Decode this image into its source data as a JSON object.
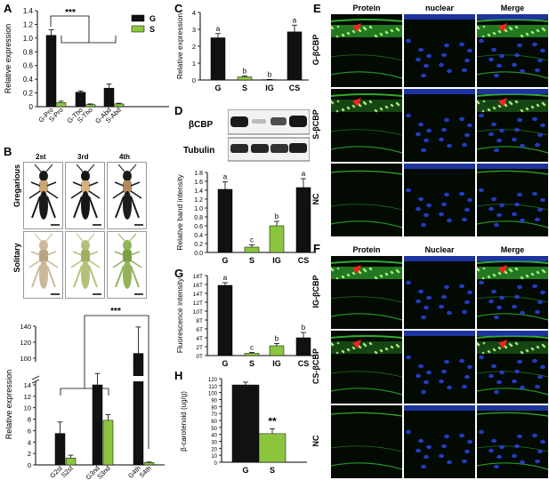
{
  "panels": {
    "A": "A",
    "B": "B",
    "C": "C",
    "D": "D",
    "E": "E",
    "F": "F",
    "G": "G",
    "H": "H"
  },
  "chart_data": [
    {
      "id": "A",
      "type": "bar",
      "ylabel": "Relative expression",
      "ylim": [
        0,
        1.4
      ],
      "yticks": [
        "0",
        "0.2",
        "0.4",
        "0.6",
        "0.8",
        "1.0",
        "1.2",
        "1.4"
      ],
      "legend": [
        {
          "name": "G",
          "color": "#111111"
        },
        {
          "name": "S",
          "color": "#8cc63f"
        }
      ],
      "categories": [
        "G-Pro",
        "S-Pro",
        "G-Tho",
        "S-Tho",
        "G-Abd",
        "S-Abd"
      ],
      "values": [
        1.04,
        0.06,
        0.21,
        0.03,
        0.27,
        0.04
      ],
      "errors": [
        0.08,
        0.02,
        0.02,
        0.01,
        0.06,
        0.01
      ],
      "significance": "***"
    },
    {
      "id": "B-bottom",
      "type": "bar",
      "ylabel": "Relative expression",
      "yticks_low": [
        "0",
        "2",
        "4",
        "6",
        "8",
        "10",
        "12",
        "14"
      ],
      "yticks_high": [
        "100",
        "120",
        "140"
      ],
      "categories": [
        "G2st",
        "S2st",
        "G3nd",
        "S3nd",
        "G4th",
        "S4th"
      ],
      "values": [
        5.5,
        1.2,
        14,
        7.8,
        106,
        0.4
      ],
      "errors": [
        2,
        0.5,
        2,
        1,
        33,
        0.1
      ],
      "significance": "***"
    },
    {
      "id": "C",
      "type": "bar",
      "ylabel": "Relative expression",
      "ylim": [
        0,
        4
      ],
      "yticks": [
        "0",
        "1",
        "2",
        "3",
        "4"
      ],
      "categories": [
        "G",
        "S",
        "IG",
        "CS"
      ],
      "values": [
        2.5,
        0.18,
        0.02,
        2.85
      ],
      "errors": [
        0.25,
        0.05,
        0.01,
        0.4
      ],
      "letters": [
        "a",
        "b",
        "b",
        "a"
      ]
    },
    {
      "id": "D",
      "type": "bar",
      "ylabel": "Relative band intensity",
      "ylim": [
        0,
        1.8
      ],
      "yticks": [
        "0.0",
        "0.2",
        "0.4",
        "0.6",
        "0.8",
        "1.0",
        "1.2",
        "1.4",
        "1.6",
        "1.8"
      ],
      "categories": [
        "G",
        "S",
        "IG",
        "CS"
      ],
      "values": [
        1.42,
        0.12,
        0.6,
        1.46
      ],
      "errors": [
        0.17,
        0.05,
        0.1,
        0.2
      ],
      "letters": [
        "a",
        "c",
        "b",
        "a"
      ],
      "blot_labels": [
        "βCBP",
        "Tubulin"
      ]
    },
    {
      "id": "G",
      "type": "bar",
      "ylabel": "Fluorescence intensity",
      "ylim": [
        0,
        18
      ],
      "yticks": [
        "0T",
        "2T",
        "4T",
        "6T",
        "8T",
        "10T",
        "12T",
        "14T",
        "16T",
        "18T"
      ],
      "categories": [
        "G",
        "S",
        "IG",
        "CS"
      ],
      "values": [
        15.8,
        0.5,
        2.2,
        4
      ],
      "errors": [
        0.6,
        0.2,
        0.5,
        1.2
      ],
      "letters": [
        "a",
        "c",
        "b",
        "b"
      ]
    },
    {
      "id": "H",
      "type": "bar",
      "ylabel": "β-carotenoid (ug/g)",
      "ylim": [
        0,
        120
      ],
      "yticks": [
        "0",
        "10",
        "20",
        "30",
        "40",
        "50",
        "60",
        "70",
        "80",
        "90",
        "100",
        "110",
        "120"
      ],
      "categories": [
        "G",
        "S"
      ],
      "values": [
        111,
        41
      ],
      "errors": [
        4,
        7
      ],
      "significance": "**"
    }
  ],
  "panelB": {
    "stages": [
      "2st",
      "3rd",
      "4th"
    ],
    "rows": [
      "Gregarious",
      "Solitary"
    ]
  },
  "panelE": {
    "cols": [
      "Protein",
      "nuclear",
      "Merge"
    ],
    "rows": [
      "G-βCBP",
      "S-βCBP",
      "NC"
    ]
  },
  "panelF": {
    "cols": [
      "Protein",
      "Nuclear",
      "Merge"
    ],
    "rows": [
      "IG-βCBP",
      "CS-βCBP",
      "NC"
    ]
  },
  "colors": {
    "black": "#111111",
    "green": "#8cc63f",
    "micro_bg": "#020a02",
    "green_fluor": "#3fd13a",
    "blue_fluor": "#2a44e0"
  }
}
